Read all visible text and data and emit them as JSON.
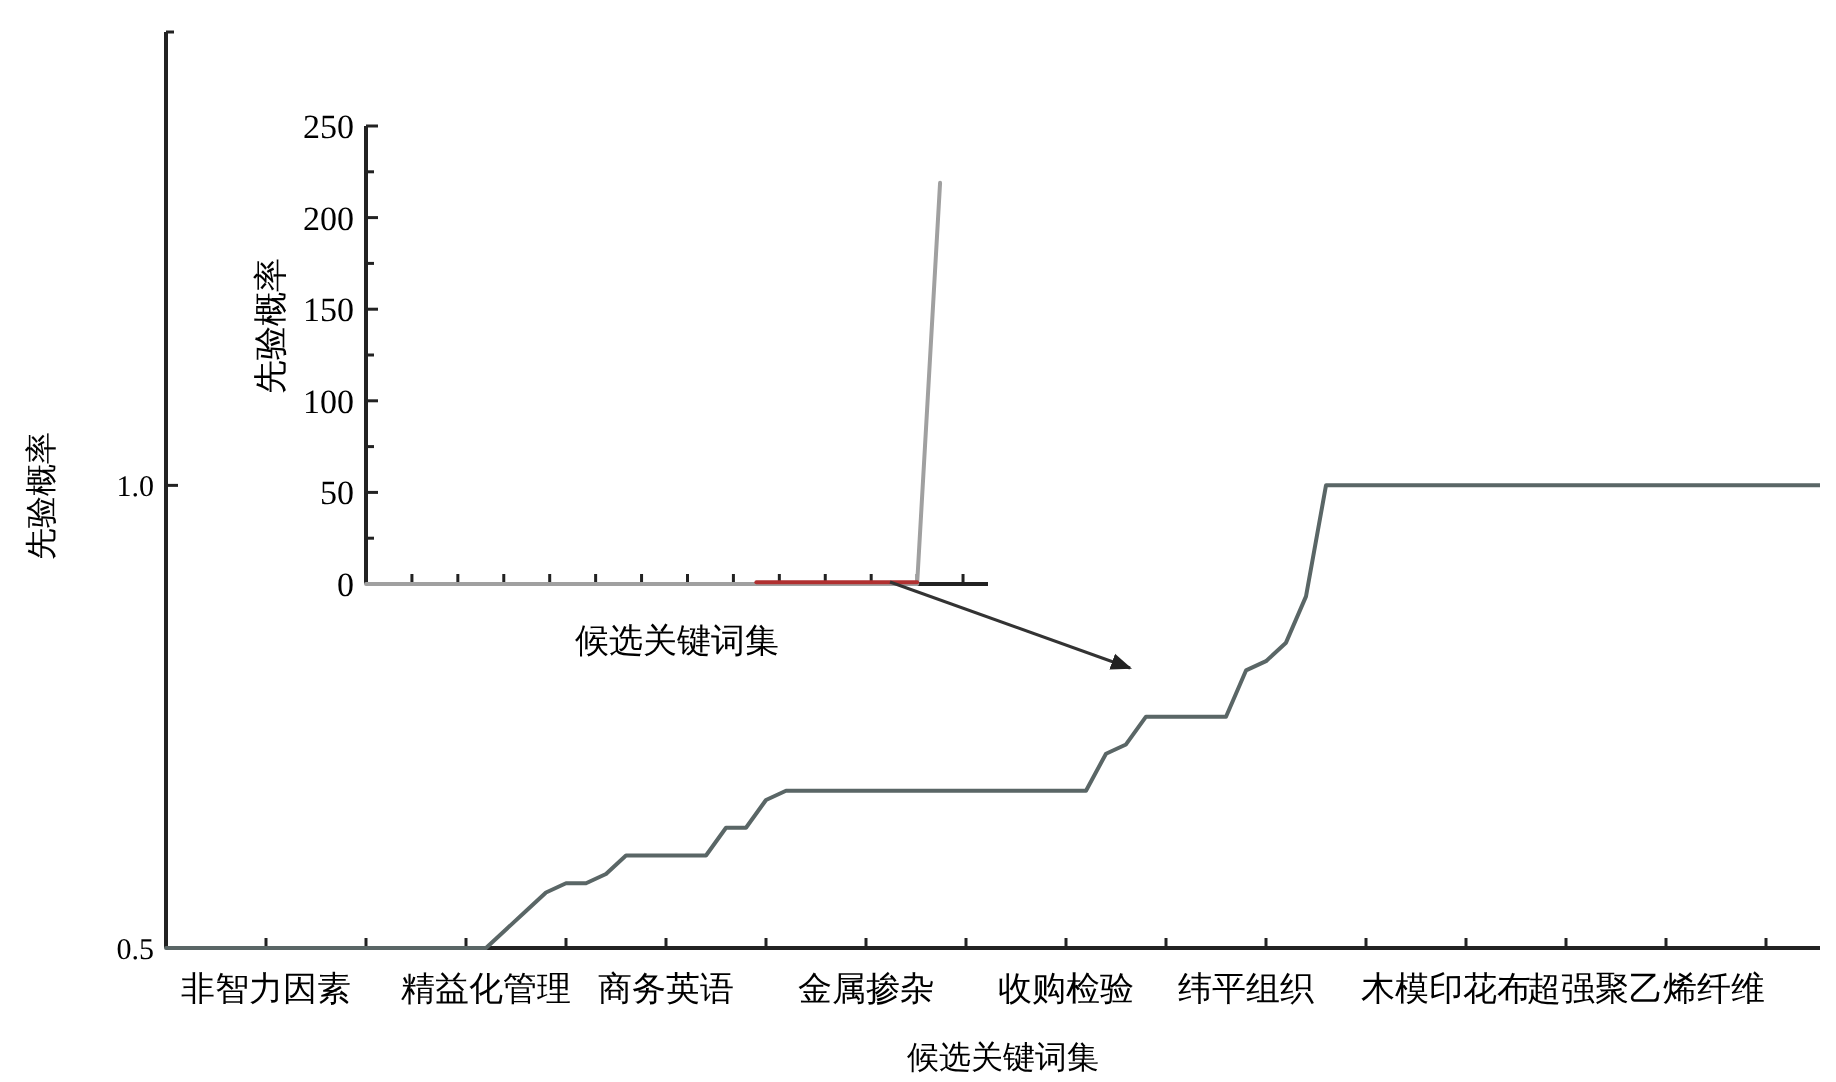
{
  "chart_data": [
    {
      "type": "line",
      "xlabel": "候选关键词集",
      "ylabel": "先验概率",
      "ylim": [
        0.5,
        1.49
      ],
      "categories": [
        null,
        null,
        null,
        null,
        null,
        "非智力因素",
        null,
        null,
        null,
        null,
        null,
        null,
        null,
        null,
        null,
        null,
        "精益化管理",
        null,
        null,
        null,
        null,
        null,
        null,
        null,
        null,
        "商务英语",
        null,
        null,
        null,
        null,
        null,
        null,
        null,
        null,
        null,
        "金属掺杂",
        null,
        null,
        null,
        null,
        null,
        null,
        null,
        null,
        null,
        "收购检验",
        null,
        null,
        null,
        null,
        null,
        null,
        null,
        null,
        "纬平组织",
        null,
        null,
        null,
        null,
        null,
        null,
        null,
        null,
        null,
        "木模印花布",
        null,
        null,
        null,
        null,
        null,
        null,
        null,
        null,
        null,
        "超强聚乙烯纤维",
        null,
        null,
        null,
        null,
        null,
        null,
        null,
        null,
        null
      ],
      "yticks": [
        {
          "value": 0.5,
          "label": "0.5"
        },
        {
          "value": 1.0,
          "label": "1.0"
        },
        {
          "value": 1.49,
          "label": null
        }
      ],
      "series": [
        {
          "color": "#5a6666",
          "values": [
            0.5,
            0.5,
            0.5,
            0.5,
            0.5,
            0.5,
            0.5,
            0.5,
            0.5,
            0.5,
            0.5,
            0.5,
            0.5,
            0.5,
            0.5,
            0.5,
            0.5,
            0.52,
            0.54,
            0.56,
            0.57,
            0.57,
            0.58,
            0.6,
            0.6,
            0.6,
            0.6,
            0.6,
            0.63,
            0.63,
            0.66,
            0.67,
            0.67,
            0.67,
            0.67,
            0.67,
            0.67,
            0.67,
            0.67,
            0.67,
            0.67,
            0.67,
            0.67,
            0.67,
            0.67,
            0.67,
            0.67,
            0.71,
            0.72,
            0.75,
            0.75,
            0.75,
            0.75,
            0.75,
            0.8,
            0.81,
            0.83,
            0.88,
            1.0,
            1.0,
            1.0,
            1.0,
            1.0,
            1.0,
            1.0,
            1.0,
            1.0,
            1.0,
            1.0,
            1.0,
            1.0,
            1.0,
            1.0,
            1.0,
            1.0,
            1.0,
            1.0,
            1.0,
            1.0,
            1.0,
            1.0,
            1.0,
            1.0,
            1.0
          ]
        }
      ]
    },
    {
      "type": "line",
      "xlabel": "候选关键词集",
      "ylabel": "先验概率",
      "ylim": [
        0,
        250
      ],
      "categories": [
        null,
        null,
        null,
        null,
        null,
        null,
        null,
        null,
        null,
        null,
        null,
        null,
        null,
        null,
        null,
        null,
        null,
        null,
        null,
        null,
        null,
        null,
        null,
        null,
        null,
        null,
        null,
        null
      ],
      "yticks": [
        0,
        {
          "value": 25,
          "label": null
        },
        50,
        {
          "value": 75,
          "label": null
        },
        100,
        {
          "value": 125,
          "label": null
        },
        150,
        {
          "value": 175,
          "label": null
        },
        200,
        {
          "value": 225,
          "label": null
        },
        250
      ],
      "series": [
        {
          "color": "#a0a0a0",
          "values": [
            0,
            0,
            0,
            0,
            0,
            0,
            0,
            0,
            0,
            0,
            0,
            0,
            0,
            0,
            0,
            0,
            0,
            0,
            0,
            0,
            0,
            0,
            0,
            0,
            0,
            219,
            null,
            null
          ]
        },
        {
          "color": "#b03030",
          "values": [
            null,
            null,
            null,
            null,
            null,
            null,
            null,
            null,
            null,
            null,
            null,
            null,
            null,
            null,
            null,
            null,
            null,
            1,
            1,
            1,
            1,
            1,
            1,
            1,
            1,
            null,
            null,
            null
          ]
        }
      ]
    }
  ]
}
